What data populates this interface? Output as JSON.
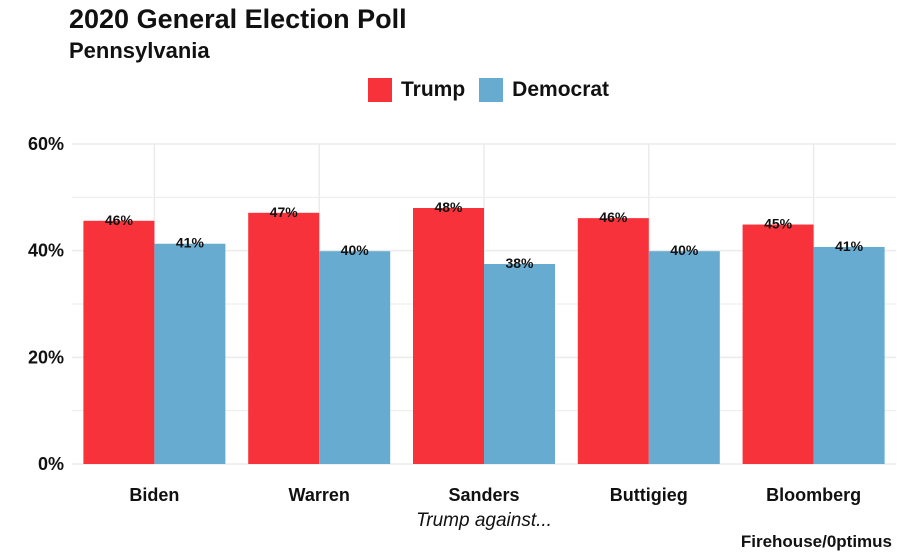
{
  "title": "2020 General Election Poll",
  "subtitle": "Pennsylvania",
  "caption": "Firehouse/0ptimus",
  "colors": {
    "trump": "#f8323a",
    "democrat": "#67abd0",
    "grid": "#ebebeb"
  },
  "chart_data": {
    "type": "bar",
    "title": "2020 General Election Poll",
    "subtitle": "Pennsylvania",
    "xlabel": "Trump against...",
    "ylabel": "",
    "ylim": [
      0,
      60
    ],
    "y_ticks": [
      0,
      20,
      40,
      60
    ],
    "y_tick_labels": [
      "0%",
      "20%",
      "40%",
      "60%"
    ],
    "grid": true,
    "legend_position": "top",
    "categories": [
      "Biden",
      "Warren",
      "Sanders",
      "Buttigieg",
      "Bloomberg"
    ],
    "series": [
      {
        "name": "Trump",
        "color": "#f8323a",
        "values": [
          45.6,
          47.1,
          48.0,
          46.1,
          44.9
        ],
        "labels": [
          "46%",
          "47%",
          "48%",
          "46%",
          "45%"
        ]
      },
      {
        "name": "Democrat",
        "color": "#67abd0",
        "values": [
          41.3,
          39.9,
          37.5,
          39.9,
          40.7
        ],
        "labels": [
          "41%",
          "40%",
          "38%",
          "40%",
          "41%"
        ]
      }
    ]
  }
}
